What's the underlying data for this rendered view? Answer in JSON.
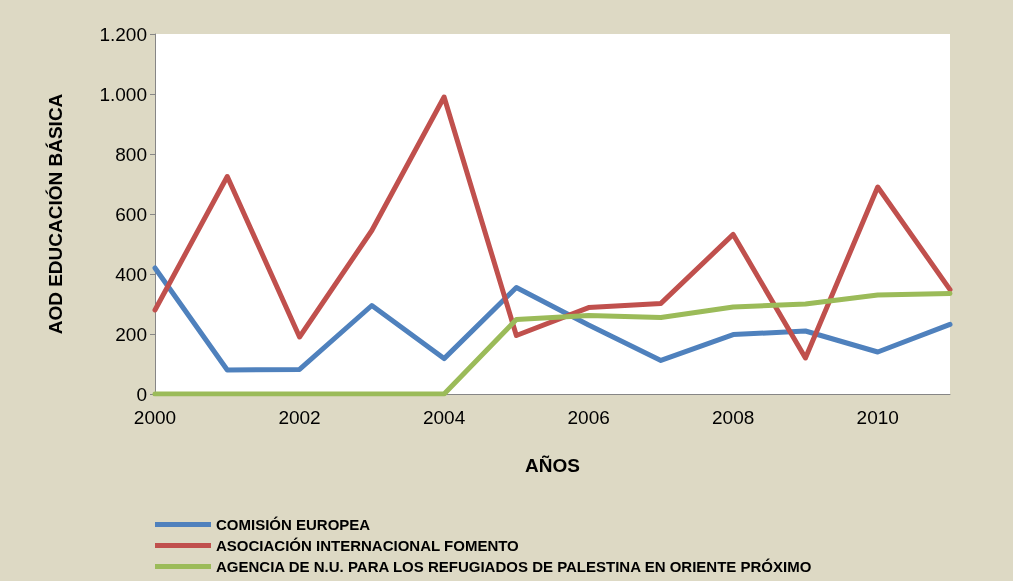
{
  "chart_data": {
    "type": "line",
    "xlabel": "AÑOS",
    "ylabel": "AOD EDUCACIÓN BÁSICA",
    "categories": [
      "2000",
      null,
      "2002",
      null,
      "2004",
      null,
      "2006",
      null,
      "2008",
      null,
      "2010",
      null
    ],
    "series": [
      {
        "name": "COMISIÓN EUROPEA",
        "color": "#4f81bd",
        "values": [
          420,
          80,
          82,
          295,
          118,
          355,
          230,
          112,
          198,
          210,
          140,
          232
        ]
      },
      {
        "name": "ASOCIACIÓN INTERNACIONAL FOMENTO",
        "color": "#c0504d",
        "values": [
          280,
          725,
          190,
          545,
          990,
          195,
          288,
          302,
          532,
          120,
          690,
          348
        ]
      },
      {
        "name": "AGENCIA DE N.U. PARA LOS REFUGIADOS DE PALESTINA EN ORIENTE PRÓXIMO",
        "color": "#9bbb59",
        "values": [
          0,
          0,
          0,
          0,
          0,
          248,
          262,
          255,
          290,
          300,
          330,
          335
        ]
      }
    ],
    "ylim": [
      0,
      1200
    ],
    "yticks": [
      0,
      200,
      400,
      600,
      800,
      {
        "value": 1000,
        "label": "1.000"
      },
      {
        "value": 1200,
        "label": "1.200"
      }
    ],
    "grid": false,
    "legend": "bottom",
    "marker": "none",
    "line_style": "solid"
  }
}
